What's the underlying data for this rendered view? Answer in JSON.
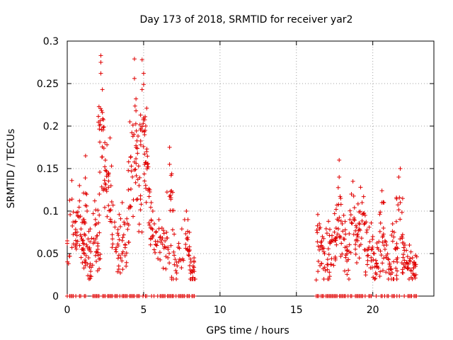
{
  "chart_data": {
    "type": "scatter",
    "title": "Day 173 of 2018, SRMTID for receiver yar2",
    "xlabel": "GPS time / hours",
    "ylabel": "SRMTID / TECUs",
    "xlim": [
      0,
      24
    ],
    "ylim": [
      0,
      0.3
    ],
    "xticks": [
      "0",
      "5",
      "10",
      "15",
      "20"
    ],
    "yticks": [
      "0",
      "0.05",
      "0.1",
      "0.15",
      "0.2",
      "0.25",
      "0.3"
    ],
    "grid": true,
    "marker": "plus",
    "color": "#e00000",
    "x_data_ranges": [
      [
        0,
        8.4
      ],
      [
        16.3,
        22.9
      ]
    ],
    "description_of_data": "Dense scatter of SRMTID values; two active periods (approx. 0-8.4 h and 16.3-22.9 h) with values mostly 0.03-0.15 TECU, peaks near 0.28 TECU around 2.2 h and 4.5-5 h; many zero-valued points along the x axis within both periods.",
    "series": [
      {
        "name": "SRMTID",
        "points": [
          [
            0.0,
            0.062
          ],
          [
            0.0,
            0.065
          ],
          [
            0.3,
            0.136
          ],
          [
            0.4,
            0.099
          ],
          [
            0.5,
            0.087
          ],
          [
            0.6,
            0.098
          ],
          [
            0.7,
            0.094
          ],
          [
            0.8,
            0.13
          ],
          [
            0.8,
            0.112
          ],
          [
            0.9,
            0.079
          ],
          [
            1.0,
            0.055
          ],
          [
            1.0,
            0.065
          ],
          [
            1.1,
            0.09
          ],
          [
            1.2,
            0.165
          ],
          [
            1.2,
            0.121
          ],
          [
            1.3,
            0.1
          ],
          [
            1.3,
            0.058
          ],
          [
            1.4,
            0.045
          ],
          [
            1.5,
            0.038
          ],
          [
            1.5,
            0.079
          ],
          [
            1.6,
            0.068
          ],
          [
            1.7,
            0.097
          ],
          [
            1.8,
            0.112
          ],
          [
            1.9,
            0.085
          ],
          [
            2.0,
            0.062
          ],
          [
            2.0,
            0.059
          ],
          [
            2.1,
            0.12
          ],
          [
            2.2,
            0.283
          ],
          [
            2.2,
            0.275
          ],
          [
            2.2,
            0.262
          ],
          [
            2.3,
            0.243
          ],
          [
            2.3,
            0.216
          ],
          [
            2.4,
            0.199
          ],
          [
            2.4,
            0.174
          ],
          [
            2.5,
            0.148
          ],
          [
            2.6,
            0.178
          ],
          [
            2.7,
            0.128
          ],
          [
            2.8,
            0.186
          ],
          [
            2.9,
            0.153
          ],
          [
            3.0,
            0.107
          ],
          [
            3.1,
            0.087
          ],
          [
            3.2,
            0.057
          ],
          [
            3.3,
            0.074
          ],
          [
            3.4,
            0.096
          ],
          [
            3.5,
            0.045
          ],
          [
            3.6,
            0.11
          ],
          [
            3.7,
            0.072
          ],
          [
            3.8,
            0.06
          ],
          [
            3.9,
            0.091
          ],
          [
            4.0,
            0.125
          ],
          [
            4.1,
            0.205
          ],
          [
            4.2,
            0.147
          ],
          [
            4.3,
            0.188
          ],
          [
            4.4,
            0.279
          ],
          [
            4.4,
            0.256
          ],
          [
            4.5,
            0.232
          ],
          [
            4.5,
            0.218
          ],
          [
            4.6,
            0.168
          ],
          [
            4.7,
            0.13
          ],
          [
            4.8,
            0.118
          ],
          [
            4.9,
            0.243
          ],
          [
            4.9,
            0.278
          ],
          [
            5.0,
            0.262
          ],
          [
            5.0,
            0.249
          ],
          [
            5.1,
            0.211
          ],
          [
            5.1,
            0.195
          ],
          [
            5.2,
            0.221
          ],
          [
            5.2,
            0.17
          ],
          [
            5.3,
            0.152
          ],
          [
            5.4,
            0.125
          ],
          [
            5.5,
            0.11
          ],
          [
            5.6,
            0.1
          ],
          [
            5.7,
            0.085
          ],
          [
            5.8,
            0.075
          ],
          [
            6.0,
            0.09
          ],
          [
            6.1,
            0.07
          ],
          [
            6.2,
            0.08
          ],
          [
            6.4,
            0.065
          ],
          [
            6.5,
            0.075
          ],
          [
            6.6,
            0.055
          ],
          [
            6.7,
            0.175
          ],
          [
            6.7,
            0.155
          ],
          [
            6.8,
            0.142
          ],
          [
            6.9,
            0.078
          ],
          [
            7.0,
            0.048
          ],
          [
            7.1,
            0.03
          ],
          [
            7.3,
            0.062
          ],
          [
            7.5,
            0.079
          ],
          [
            7.8,
            0.1
          ],
          [
            7.9,
            0.09
          ],
          [
            8.0,
            0.075
          ],
          [
            8.0,
            0.058
          ],
          [
            8.1,
            0.04
          ],
          [
            8.2,
            0.028
          ],
          [
            8.3,
            0.045
          ],
          [
            8.3,
            0.04
          ],
          [
            16.3,
            0.019
          ],
          [
            16.4,
            0.096
          ],
          [
            16.5,
            0.085
          ],
          [
            16.6,
            0.063
          ],
          [
            16.7,
            0.07
          ],
          [
            16.8,
            0.052
          ],
          [
            16.9,
            0.03
          ],
          [
            17.0,
            0.074
          ],
          [
            17.1,
            0.088
          ],
          [
            17.2,
            0.062
          ],
          [
            17.3,
            0.044
          ],
          [
            17.4,
            0.065
          ],
          [
            17.5,
            0.097
          ],
          [
            17.6,
            0.102
          ],
          [
            17.7,
            0.073
          ],
          [
            17.8,
            0.16
          ],
          [
            17.8,
            0.14
          ],
          [
            17.9,
            0.115
          ],
          [
            18.0,
            0.085
          ],
          [
            18.1,
            0.095
          ],
          [
            18.2,
            0.078
          ],
          [
            18.3,
            0.058
          ],
          [
            18.4,
            0.043
          ],
          [
            18.5,
            0.09
          ],
          [
            18.6,
            0.12
          ],
          [
            18.7,
            0.135
          ],
          [
            18.8,
            0.104
          ],
          [
            18.9,
            0.083
          ],
          [
            19.0,
            0.073
          ],
          [
            19.1,
            0.099
          ],
          [
            19.2,
            0.128
          ],
          [
            19.3,
            0.11
          ],
          [
            19.4,
            0.117
          ],
          [
            19.5,
            0.095
          ],
          [
            19.6,
            0.075
          ],
          [
            19.7,
            0.055
          ],
          [
            19.8,
            0.064
          ],
          [
            19.9,
            0.086
          ],
          [
            20.0,
            0.07
          ],
          [
            20.1,
            0.05
          ],
          [
            20.2,
            0.042
          ],
          [
            20.3,
            0.057
          ],
          [
            20.4,
            0.064
          ],
          [
            20.5,
            0.053
          ],
          [
            20.6,
            0.124
          ],
          [
            20.6,
            0.11
          ],
          [
            20.7,
            0.08
          ],
          [
            20.8,
            0.065
          ],
          [
            20.9,
            0.06
          ],
          [
            21.0,
            0.044
          ],
          [
            21.1,
            0.037
          ],
          [
            21.2,
            0.032
          ],
          [
            21.3,
            0.085
          ],
          [
            21.4,
            0.075
          ],
          [
            21.5,
            0.055
          ],
          [
            21.6,
            0.04
          ],
          [
            21.7,
            0.14
          ],
          [
            21.8,
            0.15
          ],
          [
            21.8,
            0.11
          ],
          [
            21.9,
            0.07
          ],
          [
            22.0,
            0.049
          ],
          [
            22.1,
            0.06
          ],
          [
            22.2,
            0.039
          ],
          [
            22.3,
            0.032
          ],
          [
            22.4,
            0.06
          ],
          [
            22.5,
            0.052
          ],
          [
            22.6,
            0.045
          ],
          [
            22.7,
            0.04
          ],
          [
            22.8,
            0.035
          ],
          [
            22.8,
            0.048
          ]
        ]
      }
    ]
  }
}
